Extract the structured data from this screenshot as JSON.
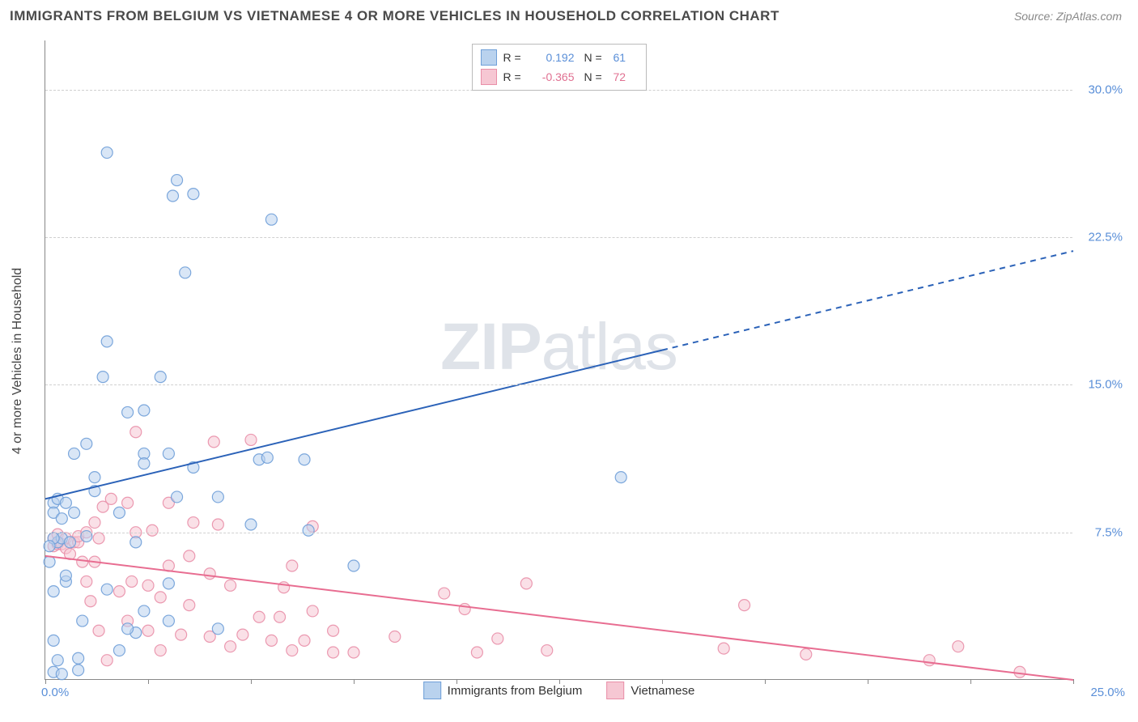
{
  "title": "IMMIGRANTS FROM BELGIUM VS VIETNAMESE 4 OR MORE VEHICLES IN HOUSEHOLD CORRELATION CHART",
  "source": "Source: ZipAtlas.com",
  "watermark_a": "ZIP",
  "watermark_b": "atlas",
  "y_axis_title": "4 or more Vehicles in Household",
  "chart": {
    "type": "scatter",
    "xlim": [
      0,
      25
    ],
    "ylim": [
      0,
      32.5
    ],
    "x_ticks": [
      0.0,
      2.5,
      5.0,
      7.5,
      10.0,
      12.5,
      15.0,
      17.5,
      20.0,
      22.5,
      25.0
    ],
    "x_tick_labels": {
      "left": "0.0%",
      "right": "25.0%"
    },
    "y_ticks": [
      7.5,
      15.0,
      22.5,
      30.0
    ],
    "y_tick_labels": [
      "7.5%",
      "15.0%",
      "22.5%",
      "30.0%"
    ],
    "grid_color": "#d0d0d0",
    "background_color": "#ffffff",
    "marker_radius": 7,
    "marker_opacity": 0.55,
    "series": [
      {
        "name": "Immigrants from Belgium",
        "color_fill": "#b9d2ee",
        "color_stroke": "#6f9fd8",
        "r_value": "0.192",
        "r_color": "#5a8fd8",
        "n_value": "61",
        "trend": {
          "y_at_x0": 9.2,
          "y_at_x25": 21.8,
          "solid_until_x": 15.0,
          "color": "#2b62b8",
          "width": 2
        },
        "points": [
          [
            0.2,
            0.4
          ],
          [
            0.8,
            1.1
          ],
          [
            0.2,
            2.0
          ],
          [
            1.8,
            1.5
          ],
          [
            2.2,
            2.4
          ],
          [
            0.2,
            4.5
          ],
          [
            0.2,
            9.0
          ],
          [
            0.3,
            9.2
          ],
          [
            0.5,
            5.0
          ],
          [
            0.5,
            5.3
          ],
          [
            0.3,
            7.0
          ],
          [
            0.4,
            7.2
          ],
          [
            0.6,
            7.0
          ],
          [
            0.2,
            7.2
          ],
          [
            0.2,
            8.5
          ],
          [
            0.4,
            8.2
          ],
          [
            0.7,
            8.5
          ],
          [
            0.5,
            9.0
          ],
          [
            1.0,
            7.3
          ],
          [
            1.2,
            9.6
          ],
          [
            1.2,
            10.3
          ],
          [
            1.0,
            12.0
          ],
          [
            1.4,
            15.4
          ],
          [
            1.5,
            17.2
          ],
          [
            1.5,
            26.8
          ],
          [
            2.0,
            13.6
          ],
          [
            2.4,
            13.7
          ],
          [
            2.8,
            15.4
          ],
          [
            3.4,
            20.7
          ],
          [
            3.1,
            24.6
          ],
          [
            3.6,
            24.7
          ],
          [
            3.2,
            25.4
          ],
          [
            3.0,
            11.5
          ],
          [
            2.4,
            11.5
          ],
          [
            2.4,
            11.0
          ],
          [
            3.0,
            4.9
          ],
          [
            3.0,
            3.0
          ],
          [
            3.2,
            9.3
          ],
          [
            3.6,
            10.8
          ],
          [
            4.2,
            9.3
          ],
          [
            1.8,
            8.5
          ],
          [
            5.0,
            7.9
          ],
          [
            5.2,
            11.2
          ],
          [
            5.4,
            11.3
          ],
          [
            5.5,
            23.4
          ],
          [
            6.4,
            7.6
          ],
          [
            6.3,
            11.2
          ],
          [
            7.5,
            5.8
          ],
          [
            14.0,
            10.3
          ],
          [
            4.2,
            2.6
          ],
          [
            2.0,
            2.6
          ],
          [
            2.4,
            3.5
          ],
          [
            1.5,
            4.6
          ],
          [
            0.9,
            3.0
          ],
          [
            0.8,
            0.5
          ],
          [
            0.4,
            0.3
          ],
          [
            0.3,
            1.0
          ],
          [
            0.1,
            6.0
          ],
          [
            0.1,
            6.8
          ],
          [
            0.7,
            11.5
          ],
          [
            2.2,
            7.0
          ]
        ]
      },
      {
        "name": "Vietnamese",
        "color_fill": "#f6c7d3",
        "color_stroke": "#e98fa8",
        "r_value": "-0.365",
        "r_color": "#e07091",
        "n_value": "72",
        "trend": {
          "y_at_x0": 6.3,
          "y_at_x25": 0.0,
          "solid_until_x": 25.0,
          "color": "#e86d91",
          "width": 2
        },
        "points": [
          [
            0.2,
            6.8
          ],
          [
            0.2,
            7.2
          ],
          [
            0.3,
            6.9
          ],
          [
            0.3,
            7.4
          ],
          [
            0.4,
            6.9
          ],
          [
            0.5,
            6.7
          ],
          [
            0.5,
            7.2
          ],
          [
            0.6,
            6.4
          ],
          [
            0.7,
            7.0
          ],
          [
            0.8,
            7.0
          ],
          [
            0.8,
            7.3
          ],
          [
            0.9,
            6.0
          ],
          [
            1.0,
            5.0
          ],
          [
            1.0,
            7.5
          ],
          [
            1.1,
            4.0
          ],
          [
            1.2,
            6.0
          ],
          [
            1.2,
            8.0
          ],
          [
            1.3,
            2.5
          ],
          [
            1.3,
            7.2
          ],
          [
            1.4,
            8.8
          ],
          [
            1.5,
            1.0
          ],
          [
            1.6,
            9.2
          ],
          [
            1.8,
            4.5
          ],
          [
            2.0,
            3.0
          ],
          [
            2.0,
            9.0
          ],
          [
            2.1,
            5.0
          ],
          [
            2.2,
            7.5
          ],
          [
            2.2,
            12.6
          ],
          [
            2.5,
            2.5
          ],
          [
            2.5,
            4.8
          ],
          [
            2.6,
            7.6
          ],
          [
            2.8,
            1.5
          ],
          [
            2.8,
            4.2
          ],
          [
            3.0,
            5.8
          ],
          [
            3.0,
            9.0
          ],
          [
            3.3,
            2.3
          ],
          [
            3.5,
            6.3
          ],
          [
            3.5,
            3.8
          ],
          [
            3.6,
            8.0
          ],
          [
            4.0,
            2.2
          ],
          [
            4.0,
            5.4
          ],
          [
            4.1,
            12.1
          ],
          [
            4.2,
            7.9
          ],
          [
            4.5,
            1.7
          ],
          [
            4.5,
            4.8
          ],
          [
            4.8,
            2.3
          ],
          [
            5.0,
            12.2
          ],
          [
            5.2,
            3.2
          ],
          [
            5.5,
            2.0
          ],
          [
            5.7,
            3.2
          ],
          [
            5.8,
            4.7
          ],
          [
            6.0,
            1.5
          ],
          [
            6.0,
            5.8
          ],
          [
            6.3,
            2.0
          ],
          [
            6.5,
            3.5
          ],
          [
            6.5,
            7.8
          ],
          [
            7.0,
            1.4
          ],
          [
            7.0,
            2.5
          ],
          [
            7.5,
            1.4
          ],
          [
            8.5,
            2.2
          ],
          [
            9.7,
            4.4
          ],
          [
            10.5,
            1.4
          ],
          [
            10.2,
            3.6
          ],
          [
            11.0,
            2.1
          ],
          [
            11.7,
            4.9
          ],
          [
            12.2,
            1.5
          ],
          [
            16.5,
            1.6
          ],
          [
            17.0,
            3.8
          ],
          [
            18.5,
            1.3
          ],
          [
            21.5,
            1.0
          ],
          [
            22.2,
            1.7
          ],
          [
            23.7,
            0.4
          ]
        ]
      }
    ]
  }
}
